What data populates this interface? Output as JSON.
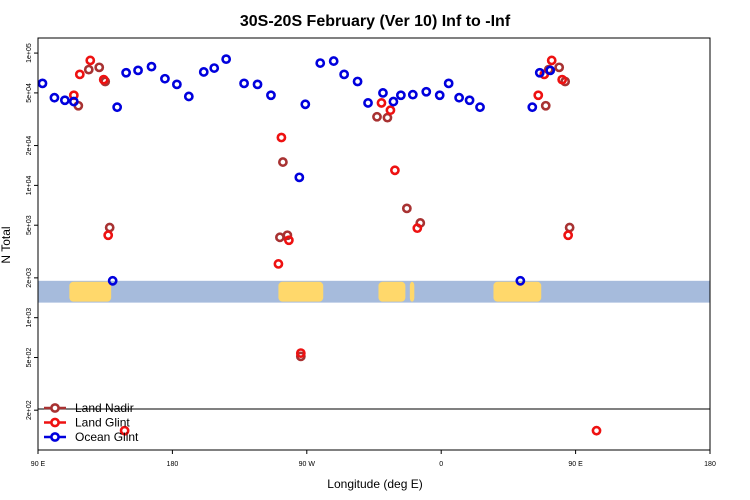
{
  "chart_data": {
    "type": "scatter",
    "title": "30S-20S February (Ver 10)   Inf to -Inf",
    "xlabel": "Longitude (deg E)",
    "ylabel": "N Total",
    "x_scale": "longitude, starting at 90 E and wrapping through 180, 90 W, 0, 90 E to 180",
    "xlim": [
      90,
      450
    ],
    "x_ticks": [
      {
        "value": 90,
        "label": "90 E"
      },
      {
        "value": 180,
        "label": "180"
      },
      {
        "value": 270,
        "label": "90 W"
      },
      {
        "value": 360,
        "label": "0"
      },
      {
        "value": 450,
        "label": "90 E"
      },
      {
        "value": 540,
        "label": "180"
      }
    ],
    "y_scale": "log",
    "ylim": [
      100,
      130000
    ],
    "y_ticks": [
      {
        "value": 200,
        "label": "2e+02"
      },
      {
        "value": 500,
        "label": "5e+02"
      },
      {
        "value": 1000,
        "label": "1e+03"
      },
      {
        "value": 2000,
        "label": "2e+03"
      },
      {
        "value": 5000,
        "label": "5e+03"
      },
      {
        "value": 10000,
        "label": "1e+04"
      },
      {
        "value": 20000,
        "label": "2e+04"
      },
      {
        "value": 50000,
        "label": "5e+04"
      },
      {
        "value": 100000,
        "label": "1e+05"
      }
    ],
    "grid": false,
    "legend_position": "bottom-left",
    "series": [
      {
        "name": "Land Nadir",
        "color": "#a83232",
        "points": [
          [
            117,
            40000
          ],
          [
            124,
            75000
          ],
          [
            131,
            78000
          ],
          [
            135,
            61000
          ],
          [
            138,
            4800
          ],
          [
            252,
            4050
          ],
          [
            254,
            15000
          ],
          [
            257,
            4200
          ],
          [
            266,
            510
          ],
          [
            317,
            33000
          ],
          [
            324,
            32500
          ],
          [
            337,
            6700
          ],
          [
            346,
            5200
          ],
          [
            430,
            40000
          ],
          [
            432,
            75000
          ],
          [
            439,
            78000
          ],
          [
            443,
            61000
          ],
          [
            446,
            4800
          ]
        ]
      },
      {
        "name": "Land Glint",
        "color": "#ee1111",
        "points": [
          [
            114,
            48000
          ],
          [
            118,
            69000
          ],
          [
            125,
            88000
          ],
          [
            134,
            63000
          ],
          [
            137,
            4200
          ],
          [
            251,
            2550
          ],
          [
            253,
            23000
          ],
          [
            258,
            3850
          ],
          [
            266,
            540
          ],
          [
            320,
            42000
          ],
          [
            326,
            37000
          ],
          [
            329,
            13000
          ],
          [
            344,
            4750
          ],
          [
            425,
            48000
          ],
          [
            429,
            69000
          ],
          [
            434,
            88000
          ],
          [
            441,
            63000
          ],
          [
            445,
            4200
          ],
          [
            148,
            140
          ],
          [
            464,
            140
          ]
        ]
      },
      {
        "name": "Ocean Glint",
        "color": "#0000dd",
        "points": [
          [
            93,
            59000
          ],
          [
            101,
            46000
          ],
          [
            108,
            44000
          ],
          [
            114,
            43000
          ],
          [
            140,
            1900
          ],
          [
            143,
            39000
          ],
          [
            149,
            71000
          ],
          [
            157,
            74000
          ],
          [
            166,
            79000
          ],
          [
            175,
            64000
          ],
          [
            183,
            58000
          ],
          [
            191,
            47000
          ],
          [
            201,
            72000
          ],
          [
            208,
            77000
          ],
          [
            216,
            90000
          ],
          [
            228,
            59000
          ],
          [
            237,
            58000
          ],
          [
            246,
            48000
          ],
          [
            265,
            11500
          ],
          [
            269,
            41000
          ],
          [
            279,
            84000
          ],
          [
            288,
            87000
          ],
          [
            295,
            69000
          ],
          [
            304,
            61000
          ],
          [
            311,
            42000
          ],
          [
            321,
            50000
          ],
          [
            328,
            43000
          ],
          [
            333,
            48000
          ],
          [
            341,
            48500
          ],
          [
            350,
            51000
          ],
          [
            359,
            48000
          ],
          [
            365,
            59000
          ],
          [
            372,
            46000
          ],
          [
            379,
            44000
          ],
          [
            386,
            39000
          ],
          [
            413,
            1900
          ],
          [
            421,
            39000
          ],
          [
            426,
            71000
          ],
          [
            433,
            74000
          ]
        ]
      }
    ],
    "background_band": {
      "y_range": [
        1300,
        1900
      ],
      "ocean_color": "#a6bbdc",
      "land_color": "#ffd86b",
      "land_segments": [
        [
          111,
          139
        ],
        [
          251,
          281
        ],
        [
          318,
          336
        ],
        [
          339,
          342
        ],
        [
          395,
          427
        ]
      ]
    },
    "legend": {
      "entries": [
        "Land Nadir",
        "Land Glint",
        "Ocean Glint"
      ]
    }
  }
}
